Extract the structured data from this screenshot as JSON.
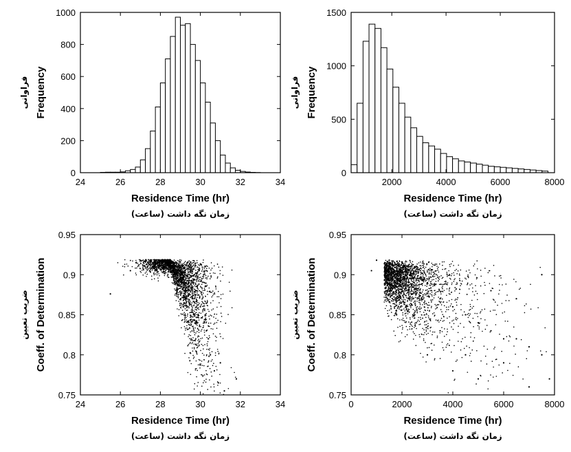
{
  "chart_data": [
    {
      "type": "bar",
      "panel": "top-left",
      "ylabel": "Frequency",
      "ylabel_fa": "فراوانی",
      "xlabel": "Residence Time (hr)",
      "xlabel_fa": "زمان نگه داشت (ساعت)",
      "xlim": [
        24,
        34
      ],
      "ylim": [
        0,
        1000
      ],
      "xticks": [
        24,
        26,
        28,
        30,
        32,
        34
      ],
      "yticks": [
        0,
        200,
        400,
        600,
        800,
        1000
      ],
      "bin_start": 25.0,
      "bin_width": 0.25,
      "values": [
        2,
        3,
        3,
        3,
        5,
        12,
        20,
        35,
        80,
        150,
        260,
        410,
        560,
        710,
        850,
        970,
        920,
        930,
        800,
        700,
        560,
        440,
        310,
        200,
        110,
        60,
        30,
        15,
        8,
        4,
        2,
        1
      ]
    },
    {
      "type": "bar",
      "panel": "top-right",
      "ylabel": "Frequency",
      "ylabel_fa": "فراوانی",
      "xlabel": "Residence Time (hr)",
      "xlabel_fa": "زمان نگه داشت (ساعت)",
      "xlim": [
        500,
        8000
      ],
      "ylim": [
        0,
        1500
      ],
      "xticks": [
        2000,
        4000,
        6000,
        8000
      ],
      "yticks": [
        0,
        500,
        1000,
        1500
      ],
      "bin_start": 500,
      "bin_width": 220,
      "values": [
        75,
        650,
        1230,
        1390,
        1350,
        1170,
        970,
        800,
        650,
        520,
        420,
        340,
        280,
        250,
        220,
        180,
        150,
        130,
        110,
        100,
        90,
        80,
        70,
        60,
        55,
        50,
        45,
        40,
        35,
        30,
        25,
        20,
        15
      ]
    },
    {
      "type": "scatter",
      "panel": "bottom-left",
      "ylabel": "Coeff. of Determination",
      "ylabel_fa": "ضریب تعیین",
      "xlabel": "Residence Time (hr)",
      "xlabel_fa": "زمان نگه داشت (ساعت)",
      "xlim": [
        24,
        34
      ],
      "ylim": [
        0.75,
        0.95
      ],
      "xticks": [
        24,
        26,
        28,
        30,
        32,
        34
      ],
      "yticks": [
        0.75,
        0.8,
        0.85,
        0.9,
        0.95
      ],
      "points": [
        [
          25.5,
          0.876
        ],
        [
          26.5,
          0.905
        ],
        [
          27.0,
          0.918
        ],
        [
          27.5,
          0.918
        ],
        [
          28.0,
          0.918
        ],
        [
          28.5,
          0.917
        ],
        [
          29.0,
          0.916
        ],
        [
          29.5,
          0.905
        ],
        [
          29.8,
          0.88
        ],
        [
          30.0,
          0.86
        ],
        [
          30.2,
          0.84
        ],
        [
          30.4,
          0.82
        ],
        [
          30.5,
          0.8
        ],
        [
          30.7,
          0.78
        ],
        [
          30.9,
          0.765
        ],
        [
          31.2,
          0.755
        ],
        [
          31.8,
          0.77
        ],
        [
          29.0,
          0.895
        ],
        [
          28.7,
          0.9
        ],
        [
          29.6,
          0.87
        ],
        [
          30.3,
          0.83
        ],
        [
          31.0,
          0.79
        ]
      ]
    },
    {
      "type": "scatter",
      "panel": "bottom-right",
      "ylabel": "Coeff. of Determination",
      "ylabel_fa": "ضریب تعیین",
      "xlabel": "Residence Time (hr)",
      "xlabel_fa": "زمان نگه داشت (ساعت)",
      "xlim": [
        0,
        8000
      ],
      "ylim": [
        0.75,
        0.95
      ],
      "xticks": [
        0,
        2000,
        4000,
        6000,
        8000
      ],
      "yticks": [
        0.75,
        0.8,
        0.85,
        0.9,
        0.95
      ],
      "points": [
        [
          800,
          0.905
        ],
        [
          1000,
          0.918
        ],
        [
          1500,
          0.918
        ],
        [
          2000,
          0.916
        ],
        [
          2500,
          0.91
        ],
        [
          3000,
          0.89
        ],
        [
          3500,
          0.87
        ],
        [
          4000,
          0.86
        ],
        [
          4500,
          0.85
        ],
        [
          5000,
          0.84
        ],
        [
          5500,
          0.83
        ],
        [
          6000,
          0.82
        ],
        [
          6500,
          0.82
        ],
        [
          7000,
          0.81
        ],
        [
          7500,
          0.8
        ],
        [
          7800,
          0.77
        ],
        [
          3000,
          0.8
        ],
        [
          4000,
          0.78
        ],
        [
          5000,
          0.77
        ],
        [
          6000,
          0.79
        ],
        [
          7000,
          0.76
        ],
        [
          2500,
          0.85
        ],
        [
          3500,
          0.83
        ],
        [
          4500,
          0.8
        ],
        [
          5500,
          0.88
        ],
        [
          6500,
          0.87
        ],
        [
          7500,
          0.9
        ]
      ]
    }
  ]
}
